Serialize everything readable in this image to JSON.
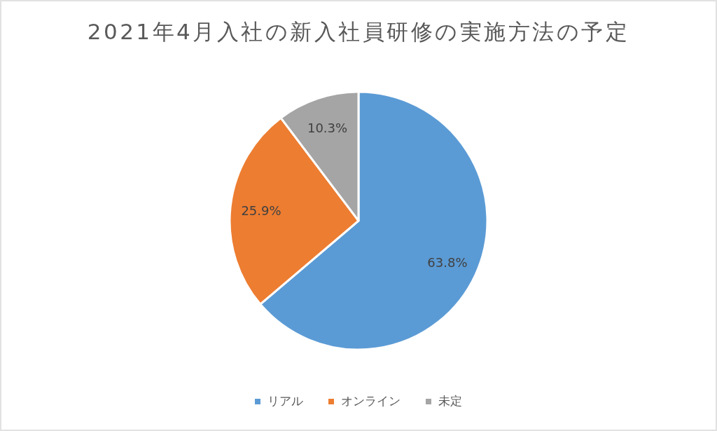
{
  "chart_data": {
    "type": "pie",
    "title": "2021年4月入社の新入社員研修の実施方法の予定",
    "categories": [
      "リアル",
      "オンライン",
      "未定"
    ],
    "values": [
      63.8,
      25.9,
      10.3
    ],
    "value_labels": [
      "63.8%",
      "25.9%",
      "10.3%"
    ],
    "colors": [
      "#5b9bd5",
      "#ed7d31",
      "#a5a5a5"
    ],
    "legend": "bottom"
  }
}
